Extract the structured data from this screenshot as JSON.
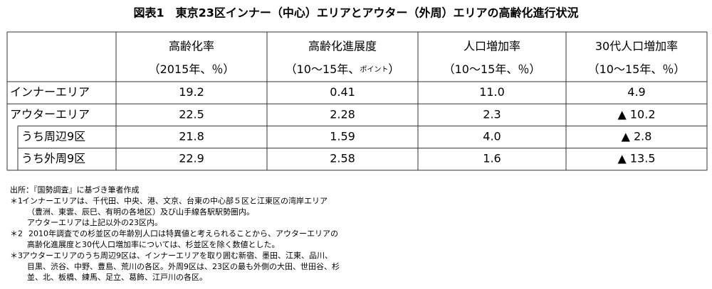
{
  "header": {
    "title": "図表1　東京23区インナー（中心）エリアとアウター（外周）エリアの高齢化進行状況"
  },
  "table": {
    "columns": [
      {
        "line1": "高齢化率",
        "line2": [
          "（2015年、％）"
        ]
      },
      {
        "line1": "高齢化進展度",
        "line2": [
          "（10～15年、",
          "ポイント",
          "）"
        ]
      },
      {
        "line1": "人口増加率",
        "line2": [
          "（10～15年、％）"
        ]
      },
      {
        "line1": "30代人口増加率",
        "line2": [
          "（10～15年、％）"
        ]
      }
    ],
    "rows": [
      {
        "label": "インナーエリア",
        "values": [
          "19.2",
          "0.41",
          "11.0",
          "4.9"
        ]
      },
      {
        "label": "アウターエリア",
        "values": [
          "22.5",
          "2.28",
          "2.3",
          "▲ 10.2"
        ],
        "sub_rows": [
          {
            "label": "うち周辺9区",
            "values": [
              "21.8",
              "1.59",
              "4.0",
              "▲ 2.8"
            ]
          },
          {
            "label": "うち外周9区",
            "values": [
              "22.9",
              "2.58",
              "1.6",
              "▲ 13.5"
            ]
          }
        ]
      }
    ]
  },
  "source": "出所：『国勢調査』に基づき筆者作成",
  "notes": [
    {
      "marker": "＊1",
      "lines": [
        "インナーエリアは、千代田、中央、港、文京、台東の中心部５区と江東区の湾岸エリア",
        "（豊洲、東雲、辰巳、有明の各地区）及び山手線各駅駅勢圏内。",
        "アウターエリアは上記以外の23区内。"
      ]
    },
    {
      "marker": "＊2",
      "lines": [
        "2010年調査での杉並区の年齢別人口は特異値と考えられることから、アウターエリアの",
        "高齢化進展度と30代人口増加率については、杉並区を除く数値とした。"
      ]
    },
    {
      "marker": "＊3",
      "lines": [
        "アウターエリアのうち周辺9区は、インナーエリアを取り囲む新宿、墨田、江東、品川、",
        "目黒、渋谷、中野、豊島、荒川の各区。外周9区は、23区の最も外側の大田、世田谷、杉",
        "並、北、板橋、練馬、足立、葛飾、江戸川の各区。"
      ]
    }
  ]
}
